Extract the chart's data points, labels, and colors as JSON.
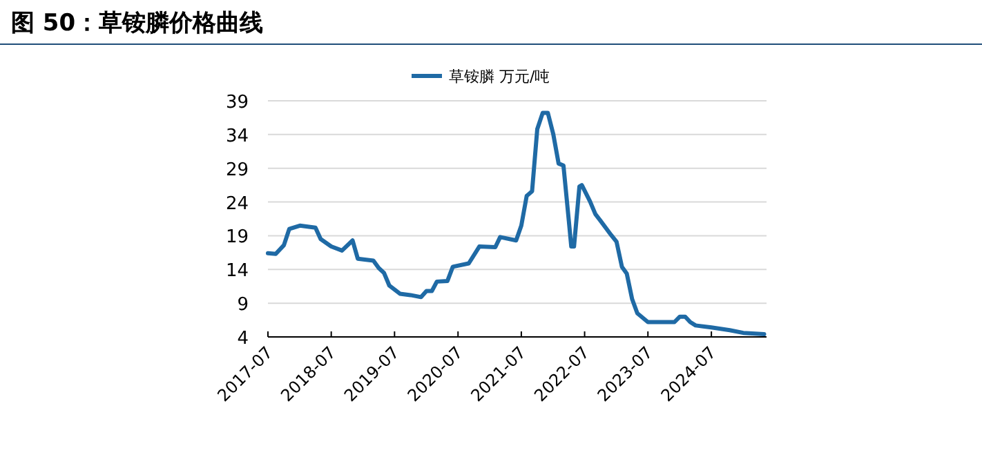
{
  "chart_data": {
    "type": "line",
    "title": "图 50：草铵膦价格曲线",
    "x": [
      "2017-07-01",
      "2017-08-15",
      "2017-10-01",
      "2017-11-01",
      "2018-01-01",
      "2018-04-01",
      "2018-05-01",
      "2018-07-01",
      "2018-09-01",
      "2018-11-01",
      "2018-12-01",
      "2019-03-01",
      "2019-04-01",
      "2019-05-01",
      "2019-06-01",
      "2019-08-01",
      "2019-10-01",
      "2019-12-01",
      "2020-01-01",
      "2020-02-01",
      "2020-03-01",
      "2020-05-01",
      "2020-06-01",
      "2020-09-01",
      "2020-11-01",
      "2021-02-01",
      "2021-03-01",
      "2021-06-01",
      "2021-07-01",
      "2021-08-01",
      "2021-09-01",
      "2021-10-01",
      "2021-11-01",
      "2021-12-01",
      "2022-01-01",
      "2022-02-01",
      "2022-03-01",
      "2022-04-01",
      "2022-04-15",
      "2022-05-01",
      "2022-06-01",
      "2022-06-15",
      "2022-08-01",
      "2022-09-01",
      "2022-10-01",
      "2022-12-01",
      "2023-01-01",
      "2023-02-01",
      "2023-03-01",
      "2023-04-01",
      "2023-05-01",
      "2023-07-01",
      "2023-09-01",
      "2023-12-01",
      "2024-01-01",
      "2024-02-01",
      "2024-03-01",
      "2024-04-01",
      "2024-07-01",
      "2024-10-15",
      "2025-01-01",
      "2025-05-01"
    ],
    "series": [
      {
        "name": "草铵膦 万元/吨",
        "color": "#1f6aa5",
        "values": [
          16.4,
          16.3,
          17.6,
          20.0,
          20.5,
          20.2,
          18.5,
          17.4,
          16.8,
          18.3,
          15.6,
          15.3,
          14.2,
          13.5,
          11.6,
          10.4,
          10.2,
          9.9,
          10.8,
          10.8,
          12.2,
          12.3,
          14.4,
          14.9,
          17.4,
          17.3,
          18.8,
          18.3,
          20.5,
          24.9,
          25.6,
          34.8,
          37.2,
          37.2,
          34.1,
          29.7,
          29.4,
          21.2,
          17.4,
          17.4,
          26.3,
          26.5,
          24.1,
          22.2,
          21.2,
          19.1,
          18.1,
          14.4,
          13.4,
          9.6,
          7.5,
          6.2,
          6.2,
          6.2,
          7.0,
          7.0,
          6.2,
          5.7,
          5.4,
          5.0,
          4.6,
          4.4
        ]
      }
    ],
    "xlim": [
      "2017-07-01",
      "2025-05-15"
    ],
    "xticks": [
      "2017-07",
      "2018-07",
      "2019-07",
      "2020-07",
      "2021-07",
      "2022-07",
      "2023-07",
      "2024-07"
    ],
    "ylim": [
      4,
      39
    ],
    "yticks": [
      4,
      9,
      14,
      19,
      24,
      29,
      34,
      39
    ],
    "grid": "y",
    "legend": "top",
    "marker": "none",
    "line_style": "solid"
  }
}
